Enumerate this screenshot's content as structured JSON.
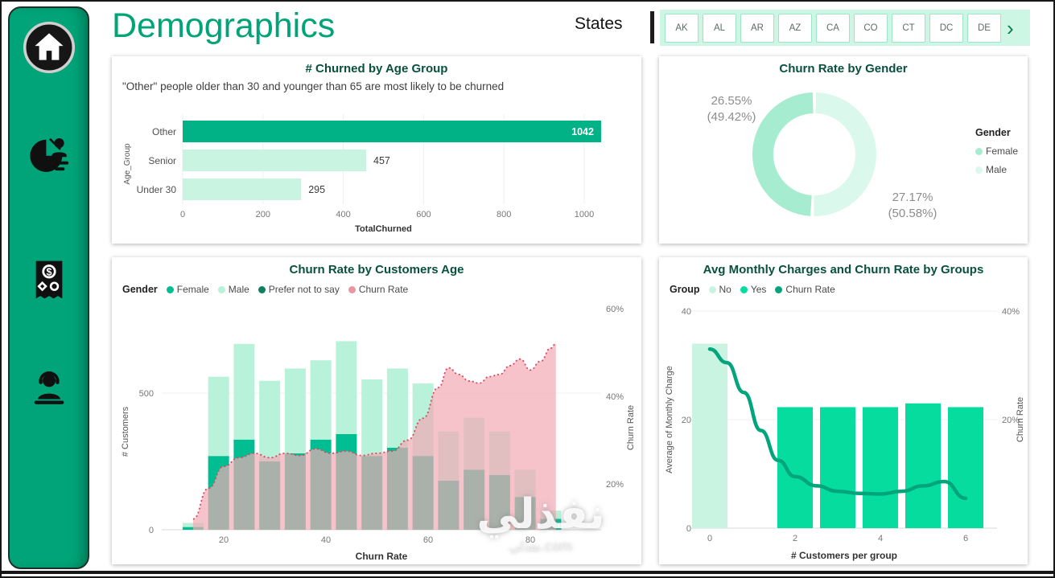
{
  "page": {
    "title": "Demographics",
    "watermark": "نفذلي",
    "watermark_sub": "نفذلي.com"
  },
  "slicer": {
    "label": "States",
    "chevron": "›",
    "states": [
      "AK",
      "AL",
      "AR",
      "AZ",
      "CA",
      "CO",
      "CT",
      "DC",
      "DE"
    ]
  },
  "sidebar": {
    "icons": [
      "home-icon",
      "demographics-report-icon",
      "charges-report-icon",
      "support-report-icon"
    ]
  },
  "colors": {
    "sidebar_green": "#00A478",
    "title_green": "#00A478",
    "chart_title_green": "#09503F",
    "slicer_bg": "#CDF6E4"
  },
  "chart_data": [
    {
      "type": "bar",
      "orientation": "horizontal",
      "title": "# Churned by Age Group",
      "subtitle": "\"Other\" people older than 30 and younger than 65 are most likely to be churned",
      "categories": [
        "Other",
        "Senior",
        "Under 30"
      ],
      "values": [
        1042,
        457,
        295
      ],
      "bar_colors": [
        "#00B286",
        "#C9F4E1",
        "#C9F4E1"
      ],
      "value_label_inside": [
        true,
        false,
        false
      ],
      "xlabel": "TotalChurned",
      "ylabel": "Age_Group",
      "xticks": [
        0,
        200,
        400,
        600,
        800,
        1000
      ],
      "xlim": [
        0,
        1100
      ]
    },
    {
      "type": "donut",
      "title": "Churn Rate by Gender",
      "legend_title": "Gender",
      "slices": [
        {
          "name": "Female",
          "pct": 49.42,
          "churn_rate_pct": 26.55,
          "rate_label": "26.55%",
          "pct_label": "(49.42%)",
          "color": "#A6ECD0"
        },
        {
          "name": "Male",
          "pct": 50.58,
          "churn_rate_pct": 27.17,
          "rate_label": "27.17%",
          "pct_label": "(50.58%)",
          "color": "#DAF8EB"
        }
      ]
    },
    {
      "type": "combo",
      "title": "Churn Rate by Customers Age",
      "legend_title": "Gender",
      "legend": [
        {
          "label": "Female",
          "color": "#00BE92"
        },
        {
          "label": "Male",
          "color": "#B9F2DA"
        },
        {
          "label": "Prefer not to say",
          "color": "#0E8060"
        },
        {
          "label": "Churn Rate",
          "color": "#E995A3"
        }
      ],
      "xlabel": "Churn Rate",
      "ylabel": "# Customers",
      "y2label": "Churn Rate",
      "xticks": [
        20,
        40,
        60,
        80
      ],
      "yticks": [
        0,
        500
      ],
      "y2ticks": [
        {
          "label": "20%",
          "value": 20
        },
        {
          "label": "40%",
          "value": 40
        },
        {
          "label": "60%",
          "value": 60
        }
      ],
      "ages": [
        14,
        19,
        24,
        29,
        34,
        39,
        44,
        49,
        54,
        59,
        64,
        69,
        74,
        79,
        84
      ],
      "series": [
        {
          "name": "Female",
          "values": [
            10,
            270,
            330,
            250,
            280,
            330,
            350,
            270,
            300,
            270,
            180,
            220,
            200,
            120,
            40
          ]
        },
        {
          "name": "Male",
          "values": [
            15,
            290,
            350,
            295,
            310,
            290,
            340,
            280,
            290,
            265,
            180,
            190,
            160,
            100,
            30
          ]
        }
      ],
      "churn_rate": [
        [
          14,
          12
        ],
        [
          17,
          19
        ],
        [
          20,
          24
        ],
        [
          23,
          26
        ],
        [
          26,
          27
        ],
        [
          29,
          26
        ],
        [
          32,
          27
        ],
        [
          35,
          26.5
        ],
        [
          38,
          28
        ],
        [
          41,
          27
        ],
        [
          44,
          27.5
        ],
        [
          47,
          26.5
        ],
        [
          50,
          27
        ],
        [
          53,
          27.5
        ],
        [
          56,
          30
        ],
        [
          59,
          35
        ],
        [
          62,
          42
        ],
        [
          64,
          46.5
        ],
        [
          66,
          45
        ],
        [
          68,
          43.5
        ],
        [
          70,
          43
        ],
        [
          72,
          44.5
        ],
        [
          74,
          45
        ],
        [
          76,
          47
        ],
        [
          78,
          48.5
        ],
        [
          80,
          46
        ],
        [
          82,
          48
        ],
        [
          84,
          51
        ],
        [
          85,
          52
        ]
      ]
    },
    {
      "type": "combo",
      "title": "Avg Monthly Charges and Churn Rate by Groups",
      "legend_title": "Group",
      "legend": [
        {
          "label": "No",
          "color": "#C9F4E1"
        },
        {
          "label": "Yes",
          "color": "#06DC9E"
        },
        {
          "label": "Churn Rate",
          "color": "#00A57C"
        }
      ],
      "xlabel": "# Customers per group",
      "ylabel": "Average of Monthly Charge",
      "y2label": "Churn Rate",
      "xticks": [
        0,
        2,
        4,
        6
      ],
      "yticks": [
        0,
        20,
        40
      ],
      "y2ticks": [
        {
          "label": "20%",
          "value": 20
        },
        {
          "label": "40%",
          "value": 40
        }
      ],
      "ylim": [
        0,
        40
      ],
      "bars": [
        {
          "x": 0,
          "group": "No",
          "value": 34
        },
        {
          "x": 2,
          "group": "Yes",
          "value": 22.3
        },
        {
          "x": 3,
          "group": "Yes",
          "value": 22.3
        },
        {
          "x": 4,
          "group": "Yes",
          "value": 22.3
        },
        {
          "x": 5,
          "group": "Yes",
          "value": 23
        },
        {
          "x": 6,
          "group": "Yes",
          "value": 22.3
        }
      ],
      "churn_rate": [
        [
          0,
          33
        ],
        [
          0.4,
          30.5
        ],
        [
          0.8,
          25
        ],
        [
          1.2,
          18
        ],
        [
          1.6,
          12.5
        ],
        [
          2,
          9.5
        ],
        [
          2.5,
          7.8
        ],
        [
          3,
          6.8
        ],
        [
          3.5,
          6.4
        ],
        [
          4,
          6.3
        ],
        [
          4.5,
          6.8
        ],
        [
          5,
          7.8
        ],
        [
          5.5,
          8.6
        ],
        [
          6,
          5.5
        ]
      ]
    }
  ]
}
